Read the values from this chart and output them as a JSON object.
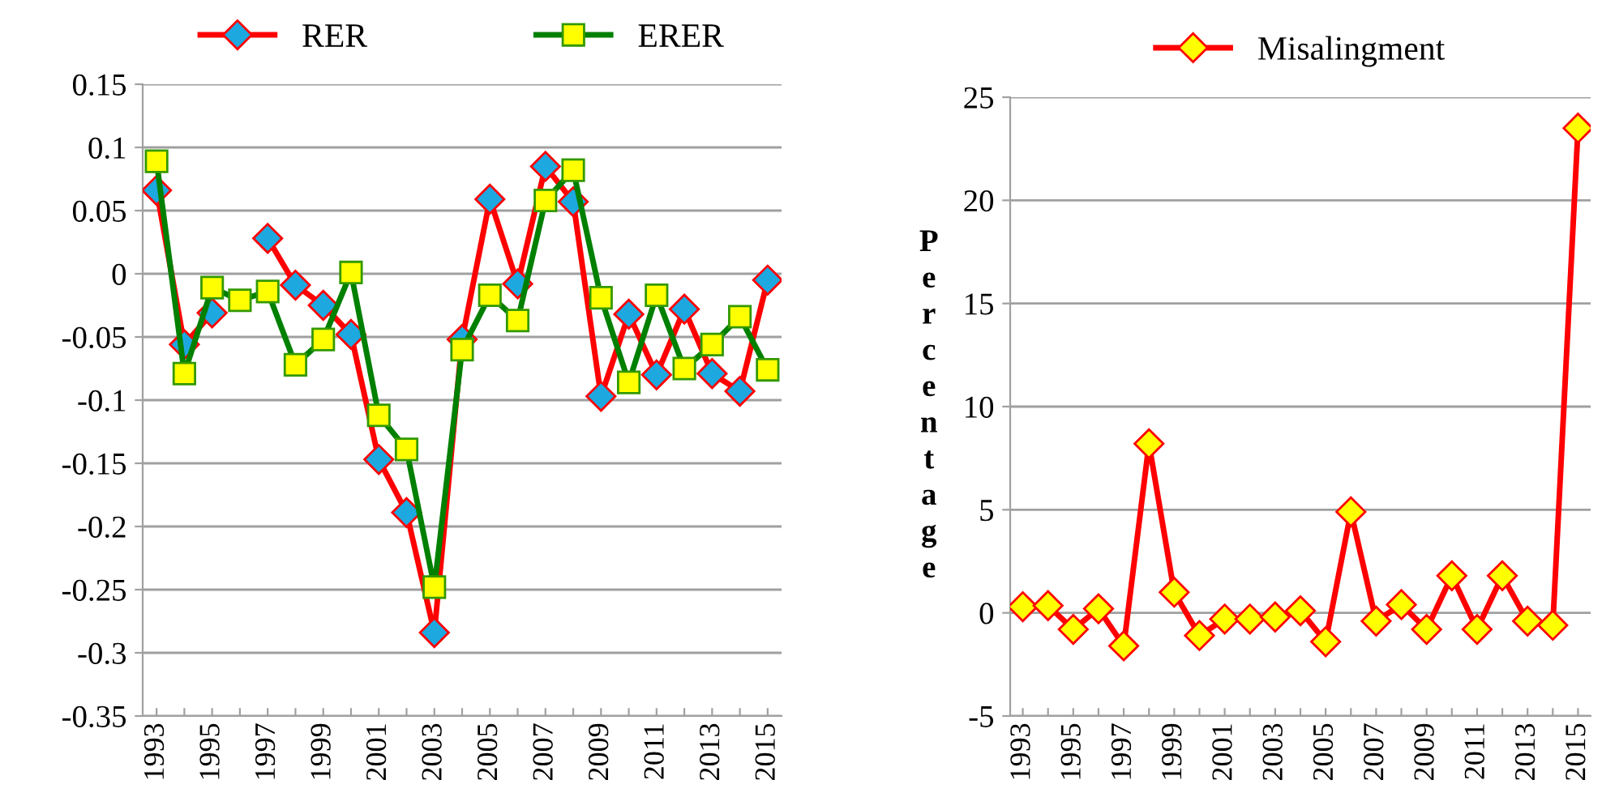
{
  "chart_data": [
    {
      "type": "line",
      "categories": [
        "1993",
        null,
        "1995",
        null,
        "1997",
        null,
        "1999",
        null,
        "2001",
        null,
        "2003",
        null,
        "2005",
        null,
        "2007",
        null,
        "2009",
        null,
        "2011",
        null,
        "2013",
        null,
        "2015"
      ],
      "series": [
        {
          "name": "RER",
          "color": "#ff0000",
          "marker": "diamond",
          "values": [
            0.066,
            -0.056,
            -0.031,
            null,
            0.028,
            -0.009,
            -0.025,
            -0.048,
            -0.147,
            -0.189,
            -0.284,
            -0.052,
            0.059,
            -0.008,
            0.085,
            0.057,
            -0.097,
            -0.032,
            -0.08,
            -0.028,
            -0.079,
            -0.093,
            -0.005
          ]
        },
        {
          "name": "ERER",
          "color": "#008000",
          "marker": "square",
          "values": [
            0.089,
            -0.079,
            -0.011,
            -0.021,
            -0.014,
            -0.072,
            -0.052,
            0.001,
            -0.112,
            -0.139,
            -0.248,
            -0.06,
            -0.017,
            -0.037,
            0.058,
            0.082,
            -0.019,
            -0.086,
            -0.017,
            -0.075,
            -0.056,
            -0.034,
            -0.076
          ]
        }
      ],
      "ylim": [
        -0.35,
        0.15
      ],
      "yticks": [
        -0.35,
        -0.3,
        -0.25,
        -0.2,
        -0.15,
        -0.1,
        -0.05,
        0,
        0.05,
        0.1,
        0.15
      ],
      "grid": "y",
      "legend": "top"
    },
    {
      "type": "line",
      "ylabel": "Percentage",
      "categories": [
        "1993",
        null,
        "1995",
        null,
        "1997",
        null,
        "1999",
        null,
        "2001",
        null,
        "2003",
        null,
        "2005",
        null,
        "2007",
        null,
        "2009",
        null,
        "2011",
        null,
        "2013",
        null,
        "2015"
      ],
      "series": [
        {
          "name": "Misalingment",
          "color": "#ff0000",
          "marker": "diamond",
          "values": [
            0.3,
            0.35,
            -0.8,
            0.2,
            -1.6,
            8.2,
            1.0,
            -1.1,
            -0.3,
            -0.3,
            -0.2,
            0.1,
            -1.4,
            4.9,
            -0.4,
            0.4,
            -0.8,
            1.8,
            -0.8,
            1.8,
            -0.4,
            -0.6,
            23.5
          ]
        }
      ],
      "ylim": [
        -5,
        25
      ],
      "yticks": [
        -5,
        0,
        5,
        10,
        15,
        20,
        25
      ],
      "grid": "y",
      "legend": "top"
    }
  ]
}
